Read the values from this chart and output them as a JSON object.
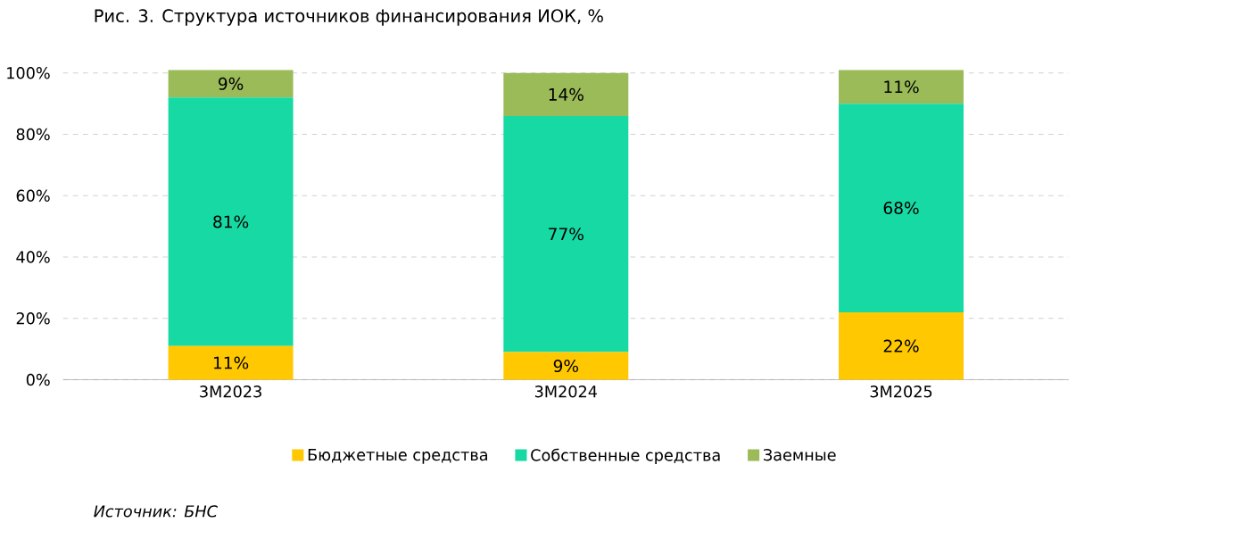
{
  "chart_data": {
    "type": "bar",
    "stacked": true,
    "title": "Рис. 3. Структура источников финансирования ИОК, %",
    "categories": [
      "3М2023",
      "3М2024",
      "3М2025"
    ],
    "series": [
      {
        "name": "Бюджетные средства",
        "color": "#ffc800",
        "values": [
          11,
          9,
          22
        ],
        "value_labels": [
          "11%",
          "9%",
          "22%"
        ]
      },
      {
        "name": "Собственные средства",
        "color": "#17d9a3",
        "values": [
          81,
          77,
          68
        ],
        "value_labels": [
          "81%",
          "77%",
          "68%"
        ]
      },
      {
        "name": "Заемные",
        "color": "#9bbb59",
        "values": [
          9,
          14,
          11
        ],
        "value_labels": [
          "9%",
          "14%",
          "11%"
        ]
      }
    ],
    "ylim": [
      0,
      101
    ],
    "yticks": [
      {
        "value": 0,
        "label": "0%"
      },
      {
        "value": 20,
        "label": "20%"
      },
      {
        "value": 40,
        "label": "40%"
      },
      {
        "value": 60,
        "label": "60%"
      },
      {
        "value": 80,
        "label": "80%"
      },
      {
        "value": 100,
        "label": "100%"
      }
    ],
    "grid": "y",
    "legend": "bottom",
    "annotations": [
      "Источник: БНС"
    ]
  }
}
